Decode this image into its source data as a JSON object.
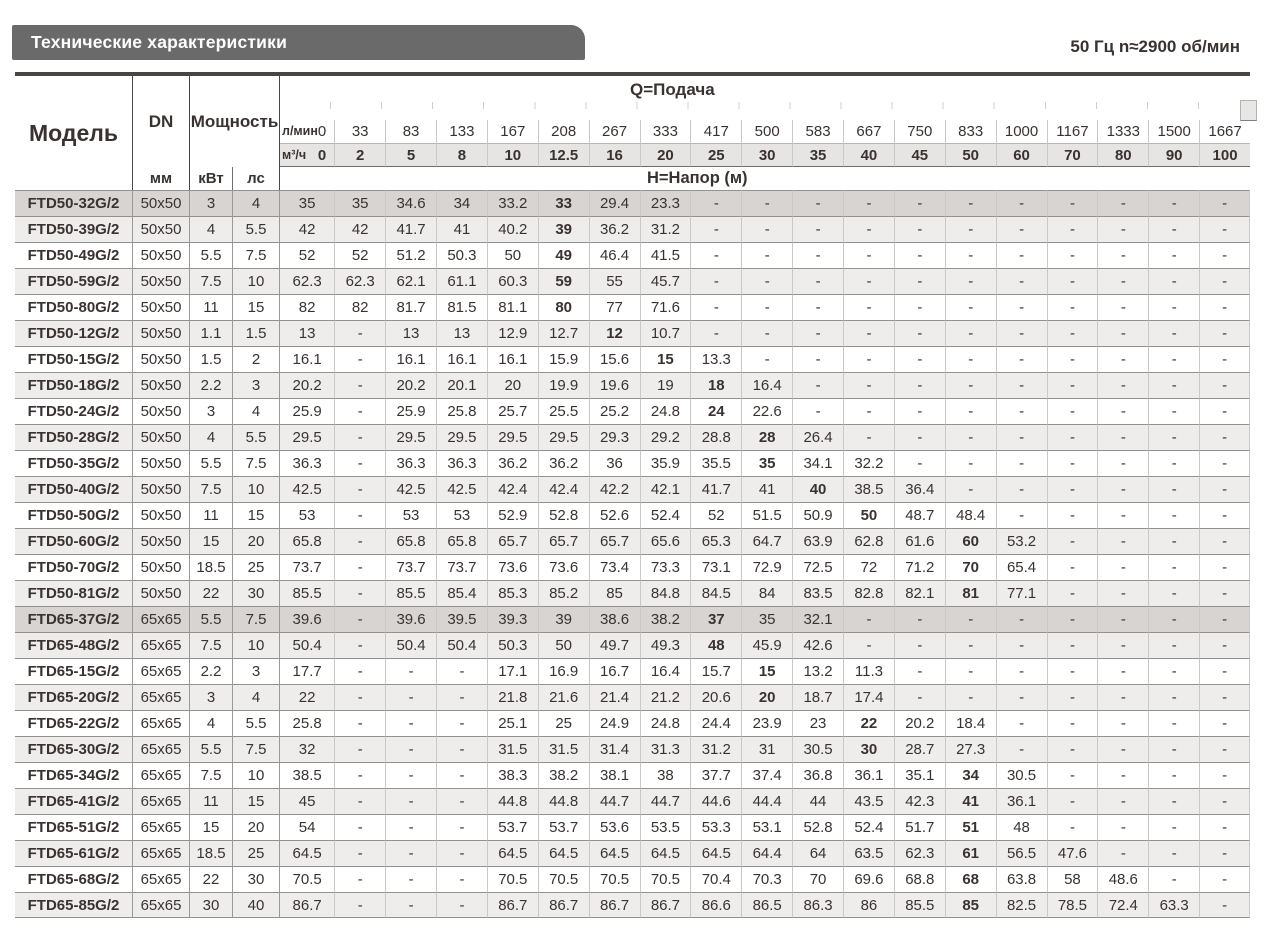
{
  "page": {
    "title": "Технические характеристики",
    "frequency_note": "50 Гц  n≈2900 об/мин"
  },
  "colors": {
    "title_bar": "#6a6a6a",
    "section_row": "#d8d4d2",
    "alt_row": "#eeedec",
    "unit_band": "#e7e5e3",
    "text": "#3a3230"
  },
  "table": {
    "headers": {
      "model": "Модель",
      "dn": "DN",
      "dn_unit": "мм",
      "power": "Мощность",
      "power_kw": "кВт",
      "power_hp": "лс",
      "flow_title": "Q=Подача",
      "flow_lmin_label": "л/мин",
      "flow_m3h_label": "м³/ч",
      "head_title": "Н=Напор (м)",
      "lmin_values": [
        "0",
        "33",
        "83",
        "133",
        "167",
        "208",
        "267",
        "333",
        "417",
        "500",
        "583",
        "667",
        "750",
        "833",
        "1000",
        "1167",
        "1333",
        "1500",
        "1667"
      ],
      "m3h_values": [
        "0",
        "2",
        "5",
        "8",
        "10",
        "12.5",
        "16",
        "20",
        "25",
        "30",
        "35",
        "40",
        "45",
        "50",
        "60",
        "70",
        "80",
        "90",
        "100"
      ]
    },
    "rows": [
      {
        "model": "FTD50-32G/2",
        "dn": "50x50",
        "kw": "3",
        "hp": "4",
        "bold_col": 5,
        "values": [
          "35",
          "35",
          "34.6",
          "34",
          "33.2",
          "33",
          "29.4",
          "23.3",
          "-",
          "-",
          "-",
          "-",
          "-",
          "-",
          "-",
          "-",
          "-",
          "-",
          "-"
        ]
      },
      {
        "model": "FTD50-39G/2",
        "dn": "50x50",
        "kw": "4",
        "hp": "5.5",
        "bold_col": 5,
        "values": [
          "42",
          "42",
          "41.7",
          "41",
          "40.2",
          "39",
          "36.2",
          "31.2",
          "-",
          "-",
          "-",
          "-",
          "-",
          "-",
          "-",
          "-",
          "-",
          "-",
          "-"
        ]
      },
      {
        "model": "FTD50-49G/2",
        "dn": "50x50",
        "kw": "5.5",
        "hp": "7.5",
        "bold_col": 5,
        "values": [
          "52",
          "52",
          "51.2",
          "50.3",
          "50",
          "49",
          "46.4",
          "41.5",
          "-",
          "-",
          "-",
          "-",
          "-",
          "-",
          "-",
          "-",
          "-",
          "-",
          "-"
        ]
      },
      {
        "model": "FTD50-59G/2",
        "dn": "50x50",
        "kw": "7.5",
        "hp": "10",
        "bold_col": 5,
        "values": [
          "62.3",
          "62.3",
          "62.1",
          "61.1",
          "60.3",
          "59",
          "55",
          "45.7",
          "-",
          "-",
          "-",
          "-",
          "-",
          "-",
          "-",
          "-",
          "-",
          "-",
          "-"
        ]
      },
      {
        "model": "FTD50-80G/2",
        "dn": "50x50",
        "kw": "11",
        "hp": "15",
        "bold_col": 5,
        "values": [
          "82",
          "82",
          "81.7",
          "81.5",
          "81.1",
          "80",
          "77",
          "71.6",
          "-",
          "-",
          "-",
          "-",
          "-",
          "-",
          "-",
          "-",
          "-",
          "-",
          "-"
        ]
      },
      {
        "model": "FTD50-12G/2",
        "dn": "50x50",
        "kw": "1.1",
        "hp": "1.5",
        "bold_col": 6,
        "values": [
          "13",
          "-",
          "13",
          "13",
          "12.9",
          "12.7",
          "12",
          "10.7",
          "-",
          "-",
          "-",
          "-",
          "-",
          "-",
          "-",
          "-",
          "-",
          "-",
          "-"
        ]
      },
      {
        "model": "FTD50-15G/2",
        "dn": "50x50",
        "kw": "1.5",
        "hp": "2",
        "bold_col": 7,
        "values": [
          "16.1",
          "-",
          "16.1",
          "16.1",
          "16.1",
          "15.9",
          "15.6",
          "15",
          "13.3",
          "-",
          "-",
          "-",
          "-",
          "-",
          "-",
          "-",
          "-",
          "-",
          "-"
        ]
      },
      {
        "model": "FTD50-18G/2",
        "dn": "50x50",
        "kw": "2.2",
        "hp": "3",
        "bold_col": 8,
        "values": [
          "20.2",
          "-",
          "20.2",
          "20.1",
          "20",
          "19.9",
          "19.6",
          "19",
          "18",
          "16.4",
          "-",
          "-",
          "-",
          "-",
          "-",
          "-",
          "-",
          "-",
          "-"
        ]
      },
      {
        "model": "FTD50-24G/2",
        "dn": "50x50",
        "kw": "3",
        "hp": "4",
        "bold_col": 8,
        "values": [
          "25.9",
          "-",
          "25.9",
          "25.8",
          "25.7",
          "25.5",
          "25.2",
          "24.8",
          "24",
          "22.6",
          "-",
          "-",
          "-",
          "-",
          "-",
          "-",
          "-",
          "-",
          "-"
        ]
      },
      {
        "model": "FTD50-28G/2",
        "dn": "50x50",
        "kw": "4",
        "hp": "5.5",
        "bold_col": 9,
        "values": [
          "29.5",
          "-",
          "29.5",
          "29.5",
          "29.5",
          "29.5",
          "29.3",
          "29.2",
          "28.8",
          "28",
          "26.4",
          "-",
          "-",
          "-",
          "-",
          "-",
          "-",
          "-",
          "-"
        ]
      },
      {
        "model": "FTD50-35G/2",
        "dn": "50x50",
        "kw": "5.5",
        "hp": "7.5",
        "bold_col": 9,
        "values": [
          "36.3",
          "-",
          "36.3",
          "36.3",
          "36.2",
          "36.2",
          "36",
          "35.9",
          "35.5",
          "35",
          "34.1",
          "32.2",
          "-",
          "-",
          "-",
          "-",
          "-",
          "-",
          "-"
        ]
      },
      {
        "model": "FTD50-40G/2",
        "dn": "50x50",
        "kw": "7.5",
        "hp": "10",
        "bold_col": 10,
        "values": [
          "42.5",
          "-",
          "42.5",
          "42.5",
          "42.4",
          "42.4",
          "42.2",
          "42.1",
          "41.7",
          "41",
          "40",
          "38.5",
          "36.4",
          "-",
          "-",
          "-",
          "-",
          "-",
          "-"
        ]
      },
      {
        "model": "FTD50-50G/2",
        "dn": "50x50",
        "kw": "11",
        "hp": "15",
        "bold_col": 11,
        "values": [
          "53",
          "-",
          "53",
          "53",
          "52.9",
          "52.8",
          "52.6",
          "52.4",
          "52",
          "51.5",
          "50.9",
          "50",
          "48.7",
          "48.4",
          "-",
          "-",
          "-",
          "-",
          "-"
        ]
      },
      {
        "model": "FTD50-60G/2",
        "dn": "50x50",
        "kw": "15",
        "hp": "20",
        "bold_col": 13,
        "values": [
          "65.8",
          "-",
          "65.8",
          "65.8",
          "65.7",
          "65.7",
          "65.7",
          "65.6",
          "65.3",
          "64.7",
          "63.9",
          "62.8",
          "61.6",
          "60",
          "53.2",
          "-",
          "-",
          "-",
          "-"
        ]
      },
      {
        "model": "FTD50-70G/2",
        "dn": "50x50",
        "kw": "18.5",
        "hp": "25",
        "bold_col": 13,
        "values": [
          "73.7",
          "-",
          "73.7",
          "73.7",
          "73.6",
          "73.6",
          "73.4",
          "73.3",
          "73.1",
          "72.9",
          "72.5",
          "72",
          "71.2",
          "70",
          "65.4",
          "-",
          "-",
          "-",
          "-"
        ]
      },
      {
        "model": "FTD50-81G/2",
        "dn": "50x50",
        "kw": "22",
        "hp": "30",
        "bold_col": 13,
        "values": [
          "85.5",
          "-",
          "85.5",
          "85.4",
          "85.3",
          "85.2",
          "85",
          "84.8",
          "84.5",
          "84",
          "83.5",
          "82.8",
          "82.1",
          "81",
          "77.1",
          "-",
          "-",
          "-",
          "-"
        ]
      },
      {
        "model": "FTD65-37G/2",
        "dn": "65x65",
        "kw": "5.5",
        "hp": "7.5",
        "bold_col": 8,
        "values": [
          "39.6",
          "-",
          "39.6",
          "39.5",
          "39.3",
          "39",
          "38.6",
          "38.2",
          "37",
          "35",
          "32.1",
          "-",
          "-",
          "-",
          "-",
          "-",
          "-",
          "-",
          "-"
        ]
      },
      {
        "model": "FTD65-48G/2",
        "dn": "65x65",
        "kw": "7.5",
        "hp": "10",
        "bold_col": 8,
        "values": [
          "50.4",
          "-",
          "50.4",
          "50.4",
          "50.3",
          "50",
          "49.7",
          "49.3",
          "48",
          "45.9",
          "42.6",
          "-",
          "-",
          "-",
          "-",
          "-",
          "-",
          "-",
          "-"
        ]
      },
      {
        "model": "FTD65-15G/2",
        "dn": "65x65",
        "kw": "2.2",
        "hp": "3",
        "bold_col": 9,
        "values": [
          "17.7",
          "-",
          "-",
          "-",
          "17.1",
          "16.9",
          "16.7",
          "16.4",
          "15.7",
          "15",
          "13.2",
          "11.3",
          "-",
          "-",
          "-",
          "-",
          "-",
          "-",
          "-"
        ]
      },
      {
        "model": "FTD65-20G/2",
        "dn": "65x65",
        "kw": "3",
        "hp": "4",
        "bold_col": 9,
        "values": [
          "22",
          "-",
          "-",
          "-",
          "21.8",
          "21.6",
          "21.4",
          "21.2",
          "20.6",
          "20",
          "18.7",
          "17.4",
          "-",
          "-",
          "-",
          "-",
          "-",
          "-",
          "-"
        ]
      },
      {
        "model": "FTD65-22G/2",
        "dn": "65x65",
        "kw": "4",
        "hp": "5.5",
        "bold_col": 11,
        "values": [
          "25.8",
          "-",
          "-",
          "-",
          "25.1",
          "25",
          "24.9",
          "24.8",
          "24.4",
          "23.9",
          "23",
          "22",
          "20.2",
          "18.4",
          "-",
          "-",
          "-",
          "-",
          "-"
        ]
      },
      {
        "model": "FTD65-30G/2",
        "dn": "65x65",
        "kw": "5.5",
        "hp": "7.5",
        "bold_col": 11,
        "values": [
          "32",
          "-",
          "-",
          "-",
          "31.5",
          "31.5",
          "31.4",
          "31.3",
          "31.2",
          "31",
          "30.5",
          "30",
          "28.7",
          "27.3",
          "-",
          "-",
          "-",
          "-",
          "-"
        ]
      },
      {
        "model": "FTD65-34G/2",
        "dn": "65x65",
        "kw": "7.5",
        "hp": "10",
        "bold_col": 13,
        "values": [
          "38.5",
          "-",
          "-",
          "-",
          "38.3",
          "38.2",
          "38.1",
          "38",
          "37.7",
          "37.4",
          "36.8",
          "36.1",
          "35.1",
          "34",
          "30.5",
          "-",
          "-",
          "-",
          "-"
        ]
      },
      {
        "model": "FTD65-41G/2",
        "dn": "65x65",
        "kw": "11",
        "hp": "15",
        "bold_col": 13,
        "values": [
          "45",
          "-",
          "-",
          "-",
          "44.8",
          "44.8",
          "44.7",
          "44.7",
          "44.6",
          "44.4",
          "44",
          "43.5",
          "42.3",
          "41",
          "36.1",
          "-",
          "-",
          "-",
          "-"
        ]
      },
      {
        "model": "FTD65-51G/2",
        "dn": "65x65",
        "kw": "15",
        "hp": "20",
        "bold_col": 13,
        "values": [
          "54",
          "-",
          "-",
          "-",
          "53.7",
          "53.7",
          "53.6",
          "53.5",
          "53.3",
          "53.1",
          "52.8",
          "52.4",
          "51.7",
          "51",
          "48",
          "-",
          "-",
          "-",
          "-"
        ]
      },
      {
        "model": "FTD65-61G/2",
        "dn": "65x65",
        "kw": "18.5",
        "hp": "25",
        "bold_col": 13,
        "values": [
          "64.5",
          "-",
          "-",
          "-",
          "64.5",
          "64.5",
          "64.5",
          "64.5",
          "64.5",
          "64.4",
          "64",
          "63.5",
          "62.3",
          "61",
          "56.5",
          "47.6",
          "-",
          "-",
          "-"
        ]
      },
      {
        "model": "FTD65-68G/2",
        "dn": "65x65",
        "kw": "22",
        "hp": "30",
        "bold_col": 13,
        "values": [
          "70.5",
          "-",
          "-",
          "-",
          "70.5",
          "70.5",
          "70.5",
          "70.5",
          "70.4",
          "70.3",
          "70",
          "69.6",
          "68.8",
          "68",
          "63.8",
          "58",
          "48.6",
          "-",
          "-"
        ]
      },
      {
        "model": "FTD65-85G/2",
        "dn": "65x65",
        "kw": "30",
        "hp": "40",
        "bold_col": 13,
        "values": [
          "86.7",
          "-",
          "-",
          "-",
          "86.7",
          "86.7",
          "86.7",
          "86.7",
          "86.6",
          "86.5",
          "86.3",
          "86",
          "85.5",
          "85",
          "82.5",
          "78.5",
          "72.4",
          "63.3",
          "-"
        ]
      }
    ]
  }
}
